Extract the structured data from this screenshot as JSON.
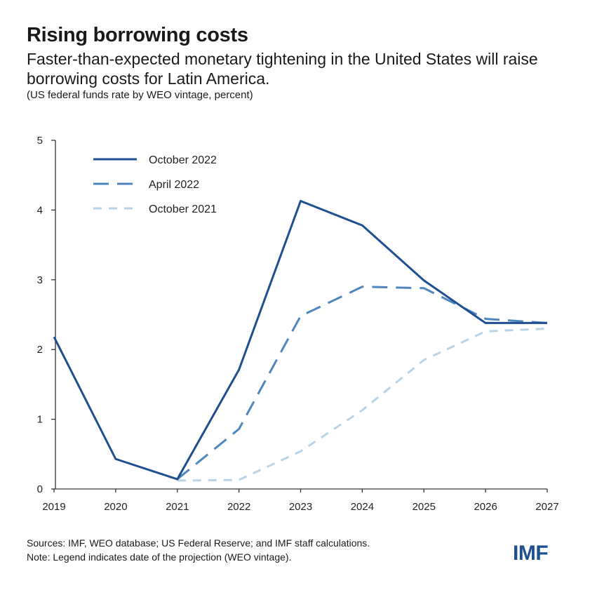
{
  "header": {
    "title": "Rising borrowing costs",
    "subtitle": "Faster-than-expected monetary tightening in the United States will raise borrowing costs for Latin America.",
    "unit_note": "(US federal funds rate by WEO vintage, percent)"
  },
  "chart_data": {
    "type": "line",
    "x": [
      2019,
      2020,
      2021,
      2022,
      2023,
      2024,
      2025,
      2026,
      2027
    ],
    "ylim": [
      0,
      5
    ],
    "yticks": [
      0,
      1,
      2,
      3,
      4,
      5
    ],
    "grid": false,
    "legend_position": "top-left",
    "series": [
      {
        "name": "October 2022",
        "color": "#1d4f91",
        "style": "solid",
        "values": [
          2.18,
          0.43,
          0.14,
          1.71,
          4.13,
          3.78,
          2.99,
          2.38,
          2.38
        ]
      },
      {
        "name": "April 2022",
        "color": "#4f86bd",
        "style": "dashed",
        "values": [
          null,
          null,
          0.14,
          0.86,
          2.48,
          2.9,
          2.88,
          2.44,
          2.38
        ]
      },
      {
        "name": "October 2021",
        "color": "#b9d3e6",
        "style": "dotted",
        "values": [
          null,
          null,
          0.12,
          0.13,
          0.54,
          1.13,
          1.85,
          2.26,
          2.3
        ]
      }
    ]
  },
  "footer": {
    "sources": "Sources: IMF, WEO database; US Federal Reserve; and IMF staff calculations.",
    "note": "Note: Legend indicates date of the projection (WEO vintage).",
    "logo": "IMF"
  }
}
